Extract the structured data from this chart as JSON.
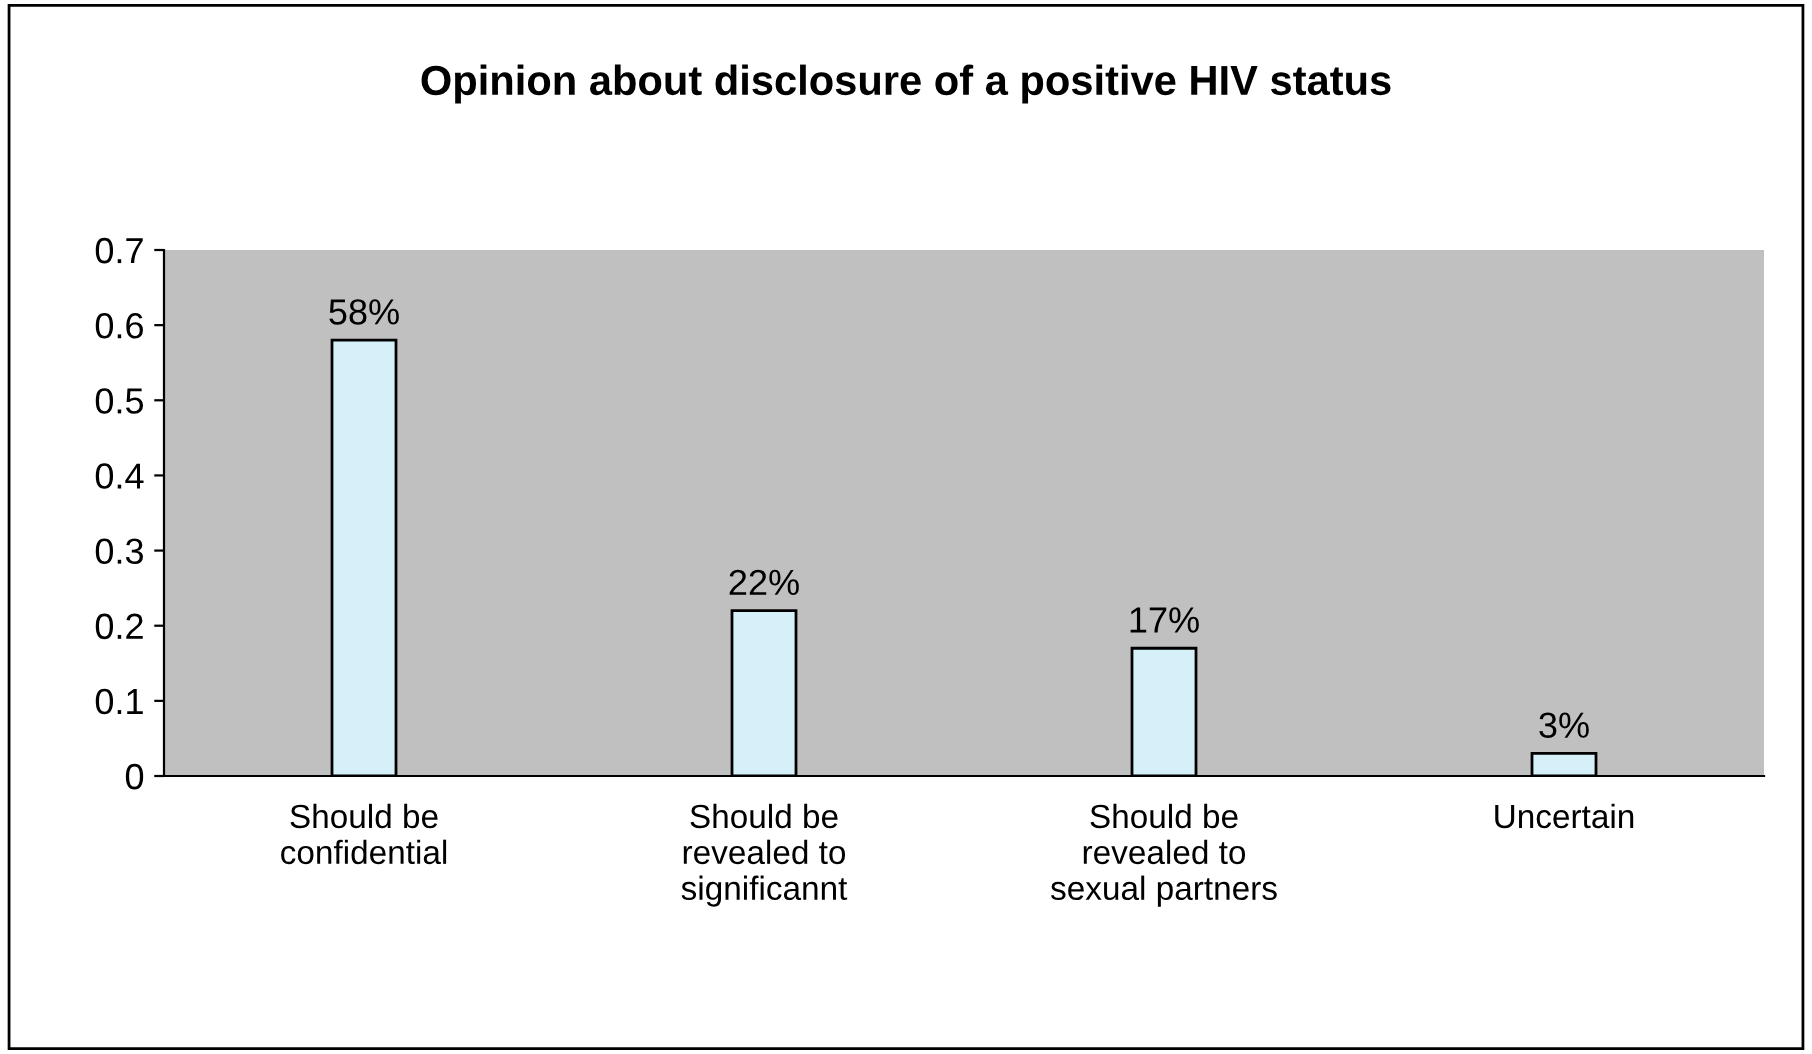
{
  "chart_data": {
    "type": "bar",
    "title": "Opinion about disclosure of a positive HIV status",
    "categories": [
      "Should be\nconfidential",
      "Should be\nrevealed to\nsignificannt",
      "Should be\nrevealed to\nsexual partners",
      "Uncertain"
    ],
    "values": [
      0.58,
      0.22,
      0.17,
      0.03
    ],
    "value_labels": [
      "58%",
      "22%",
      "17%",
      "3%"
    ],
    "color": "#d6f0fa",
    "ylim": [
      0,
      0.7
    ],
    "yticks": [
      0,
      0.1,
      0.2,
      0.3,
      0.4,
      0.5,
      0.6,
      0.7
    ],
    "grid": false,
    "legend": false
  }
}
